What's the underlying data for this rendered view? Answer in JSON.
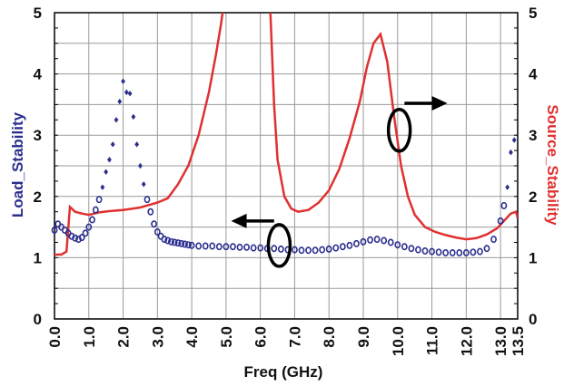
{
  "chart_data": {
    "type": "line",
    "xlabel": "Freq (GHz)",
    "ylabel_left": "Load_Stability",
    "ylabel_right": "Source_Stability",
    "xlim": [
      0.0,
      13.5
    ],
    "ylim_left": [
      0,
      5
    ],
    "ylim_right": [
      0,
      5
    ],
    "x_ticks": [
      "0.0",
      "1.0",
      "2.0",
      "3.0",
      "4.0",
      "5.0",
      "6.0",
      "7.0",
      "8.0",
      "9.0",
      "10.0",
      "11.0",
      "12.0",
      "13.0",
      "13.5"
    ],
    "y_ticks_left": [
      "0",
      "1",
      "2",
      "3",
      "4",
      "5"
    ],
    "y_ticks_right": [
      "0",
      "1",
      "2",
      "3",
      "4",
      "5"
    ],
    "grid": true,
    "colors": {
      "load": "#2b2f8f",
      "source": "#e03030",
      "annotation": "#000000"
    },
    "series": [
      {
        "axis": "left",
        "style": "markers",
        "x": [
          0.0,
          0.1,
          0.2,
          0.3,
          0.4,
          0.5,
          0.6,
          0.7,
          0.8,
          0.9,
          1.0,
          1.1,
          1.2,
          1.3,
          1.4,
          1.5,
          1.6,
          1.7,
          1.8,
          1.9,
          2.0,
          2.1,
          2.2,
          2.3,
          2.4,
          2.5,
          2.6,
          2.7,
          2.8,
          2.9,
          3.0,
          3.1,
          3.2,
          3.3,
          3.4,
          3.5,
          3.6,
          3.7,
          3.8,
          3.9,
          4.0,
          4.2,
          4.4,
          4.6,
          4.8,
          5.0,
          5.2,
          5.4,
          5.6,
          5.8,
          6.0,
          6.2,
          6.4,
          6.6,
          6.8,
          7.0,
          7.2,
          7.4,
          7.6,
          7.8,
          8.0,
          8.2,
          8.4,
          8.6,
          8.8,
          9.0,
          9.2,
          9.4,
          9.6,
          9.8,
          10.0,
          10.2,
          10.4,
          10.6,
          10.8,
          11.0,
          11.2,
          11.4,
          11.6,
          11.8,
          12.0,
          12.2,
          12.4,
          12.6,
          12.8,
          13.0,
          13.1,
          13.2,
          13.3,
          13.4
        ],
        "y": [
          1.45,
          1.55,
          1.5,
          1.45,
          1.4,
          1.35,
          1.32,
          1.3,
          1.33,
          1.4,
          1.5,
          1.62,
          1.78,
          1.95,
          2.15,
          2.4,
          2.6,
          2.85,
          3.25,
          3.55,
          3.88,
          3.7,
          3.68,
          3.3,
          2.85,
          2.5,
          2.2,
          1.95,
          1.75,
          1.55,
          1.42,
          1.35,
          1.3,
          1.28,
          1.26,
          1.25,
          1.24,
          1.23,
          1.22,
          1.21,
          1.2,
          1.19,
          1.19,
          1.19,
          1.18,
          1.18,
          1.18,
          1.17,
          1.17,
          1.16,
          1.16,
          1.15,
          1.15,
          1.14,
          1.13,
          1.13,
          1.12,
          1.12,
          1.12,
          1.13,
          1.14,
          1.16,
          1.18,
          1.2,
          1.23,
          1.26,
          1.29,
          1.3,
          1.28,
          1.25,
          1.21,
          1.18,
          1.15,
          1.13,
          1.11,
          1.1,
          1.09,
          1.08,
          1.08,
          1.08,
          1.08,
          1.09,
          1.1,
          1.15,
          1.3,
          1.6,
          1.85,
          2.15,
          2.72,
          2.92
        ]
      },
      {
        "axis": "right",
        "style": "line",
        "x": [
          0.0,
          0.2,
          0.35,
          0.45,
          0.6,
          0.8,
          1.0,
          1.3,
          1.6,
          2.0,
          2.5,
          3.0,
          3.3,
          3.6,
          3.9,
          4.2,
          4.5,
          4.7,
          4.85,
          4.95,
          5.0,
          6.25,
          6.3,
          6.4,
          6.5,
          6.7,
          6.9,
          7.1,
          7.4,
          7.7,
          8.0,
          8.3,
          8.6,
          8.9,
          9.1,
          9.3,
          9.5,
          9.7,
          9.9,
          10.1,
          10.3,
          10.5,
          10.8,
          11.1,
          11.4,
          11.7,
          12.0,
          12.3,
          12.6,
          12.9,
          13.1,
          13.3,
          13.45,
          13.5
        ],
        "y": [
          1.05,
          1.05,
          1.1,
          1.83,
          1.75,
          1.72,
          1.7,
          1.74,
          1.76,
          1.78,
          1.82,
          1.9,
          1.97,
          2.2,
          2.5,
          3.0,
          3.7,
          4.3,
          4.8,
          5.2,
          5.5,
          5.5,
          4.9,
          3.5,
          2.6,
          2.0,
          1.8,
          1.75,
          1.78,
          1.9,
          2.1,
          2.45,
          2.95,
          3.55,
          4.1,
          4.5,
          4.65,
          4.2,
          3.3,
          2.5,
          2.0,
          1.7,
          1.5,
          1.42,
          1.37,
          1.33,
          1.3,
          1.32,
          1.38,
          1.48,
          1.6,
          1.72,
          1.75,
          1.65
        ]
      }
    ]
  }
}
